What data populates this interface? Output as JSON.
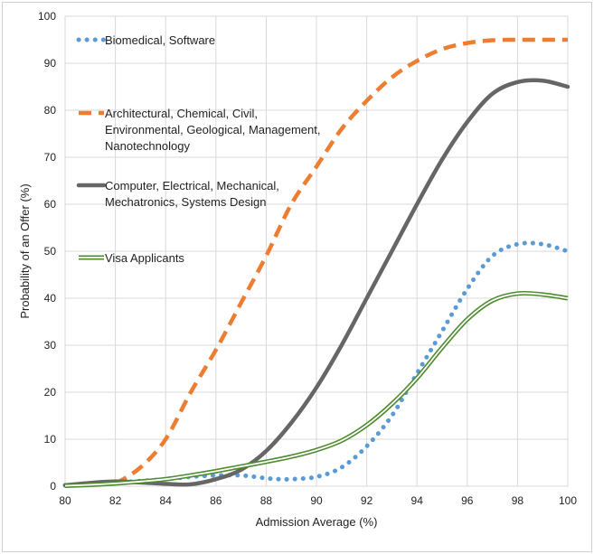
{
  "chart_data": {
    "type": "line",
    "xlabel": "Admission Average (%)",
    "ylabel": "Probability of an Offer (%)",
    "xlim": [
      80,
      100
    ],
    "ylim": [
      0,
      100
    ],
    "xticks": [
      80,
      82,
      84,
      86,
      88,
      90,
      92,
      94,
      96,
      98,
      100
    ],
    "yticks": [
      0,
      10,
      20,
      30,
      40,
      50,
      60,
      70,
      80,
      90,
      100
    ],
    "grid": true,
    "legend_position": "top-left",
    "series": [
      {
        "name": "Biomedical, Software",
        "legend_lines": [
          "Biomedical, Software"
        ],
        "style": "dotted",
        "color": "#5b9bd5",
        "x": [
          80,
          81,
          82,
          83,
          84,
          85,
          86,
          87,
          88,
          88.5,
          89,
          90,
          91,
          92,
          93,
          94,
          95,
          96,
          97,
          98,
          99,
          100
        ],
        "y": [
          0.2,
          0.5,
          0.8,
          1.1,
          1.5,
          2.0,
          2.3,
          2.3,
          1.7,
          1.5,
          1.5,
          2.0,
          4.0,
          8.5,
          15.0,
          24.0,
          33.0,
          42.0,
          49.0,
          51.5,
          51.5,
          50.0
        ]
      },
      {
        "name": "Architectural, Chemical, Civil, Environmental, Geological, Management, Nanotechnology",
        "legend_lines": [
          "Architectural, Chemical, Civil,",
          "Environmental, Geological, Management,",
          "Nanotechnology"
        ],
        "style": "dashed",
        "color": "#ed7d31",
        "x": [
          82,
          83,
          84,
          85,
          86,
          87,
          88,
          89,
          90,
          91,
          92,
          93,
          94,
          95,
          96,
          97,
          98,
          99,
          100
        ],
        "y": [
          0.5,
          4,
          10,
          20,
          29,
          39,
          49,
          60,
          68,
          76,
          82,
          87,
          90.5,
          93,
          94.3,
          94.9,
          95,
          95,
          95
        ]
      },
      {
        "name": "Computer, Electrical, Mechanical, Mechatronics, Systems Design",
        "legend_lines": [
          "Computer, Electrical, Mechanical,",
          "Mechatronics, Systems Design"
        ],
        "style": "solid",
        "color": "#666666",
        "x": [
          80,
          81,
          82,
          83,
          84,
          85,
          86,
          87,
          88,
          89,
          90,
          91,
          92,
          93,
          94,
          95,
          96,
          97,
          98,
          99,
          100
        ],
        "y": [
          0.2,
          0.7,
          1.0,
          0.8,
          0.5,
          0.4,
          1.5,
          3.5,
          7.5,
          13.5,
          21.0,
          30.0,
          40.0,
          50.0,
          60.0,
          69.5,
          77.5,
          83.5,
          86.0,
          86.3,
          85.0
        ]
      },
      {
        "name": "Visa Applicants",
        "legend_lines": [
          "Visa Applicants"
        ],
        "style": "double",
        "color": "#4e8b2e",
        "x": [
          80,
          81,
          82,
          83,
          84,
          85,
          86,
          87,
          88,
          89,
          90,
          91,
          92,
          93,
          94,
          95,
          96,
          97,
          98,
          99,
          100
        ],
        "y": [
          0.1,
          0.3,
          0.6,
          1.0,
          1.5,
          2.3,
          3.2,
          4.2,
          5.2,
          6.3,
          7.7,
          9.7,
          13.0,
          17.5,
          23.0,
          29.5,
          35.5,
          39.5,
          41.0,
          40.8,
          40.0
        ]
      }
    ]
  }
}
